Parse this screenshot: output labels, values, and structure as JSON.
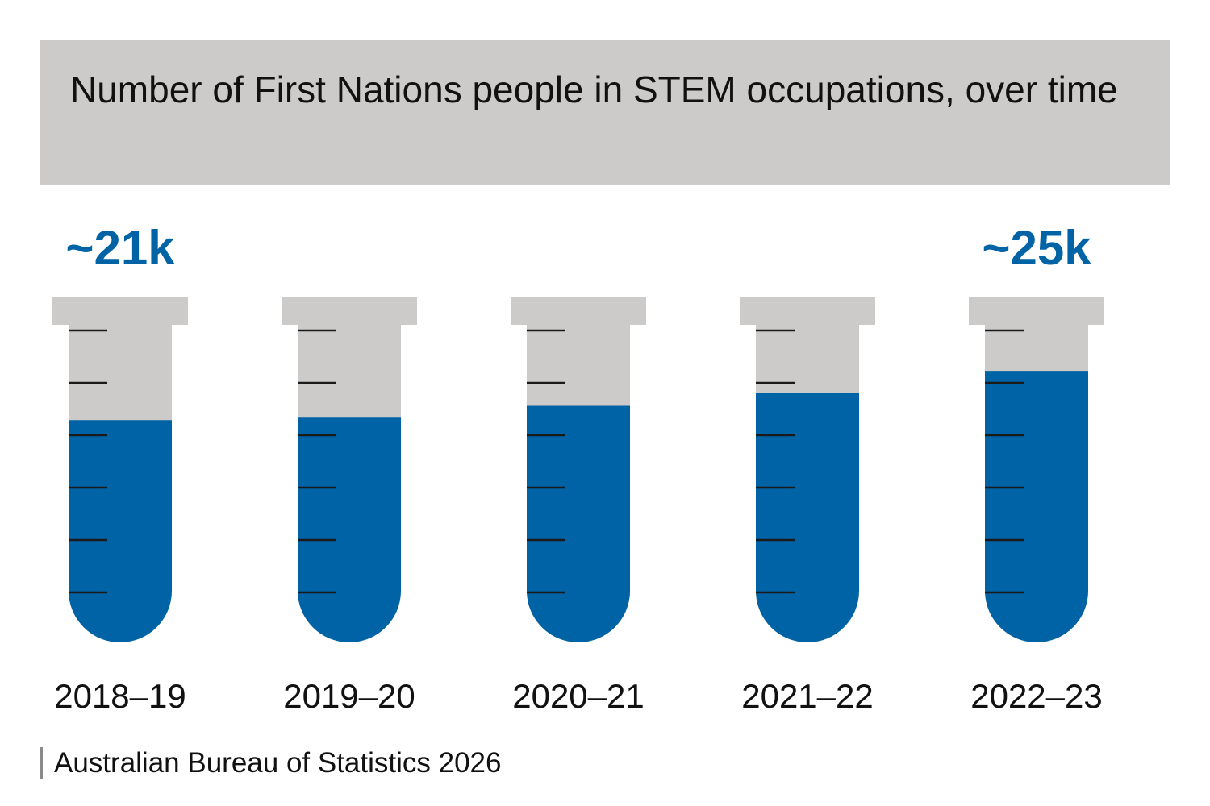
{
  "title": "Number of First Nations people in STEM occupations, over time",
  "source": "Australian Bureau of Statistics 2026",
  "colors": {
    "fill": "#0063a6",
    "tube": "#cccbca",
    "tick": "#1a1a1a",
    "annotation": "#0063a6",
    "title_bg": "#cccbca"
  },
  "chart_data": {
    "type": "bar",
    "title": "Number of First Nations people in STEM occupations, over time",
    "categories": [
      "2018–19",
      "2019–20",
      "2020–21",
      "2021–22",
      "2022–23"
    ],
    "values": [
      21000,
      21300,
      22000,
      22900,
      25000
    ],
    "fill_fraction": [
      0.7,
      0.71,
      0.745,
      0.785,
      0.855
    ],
    "annotations": [
      {
        "category": "2018–19",
        "label": "~21k"
      },
      {
        "category": "2022–23",
        "label": "~25k"
      }
    ],
    "xlabel": "",
    "ylabel": "",
    "grid": false,
    "legend": "none"
  }
}
